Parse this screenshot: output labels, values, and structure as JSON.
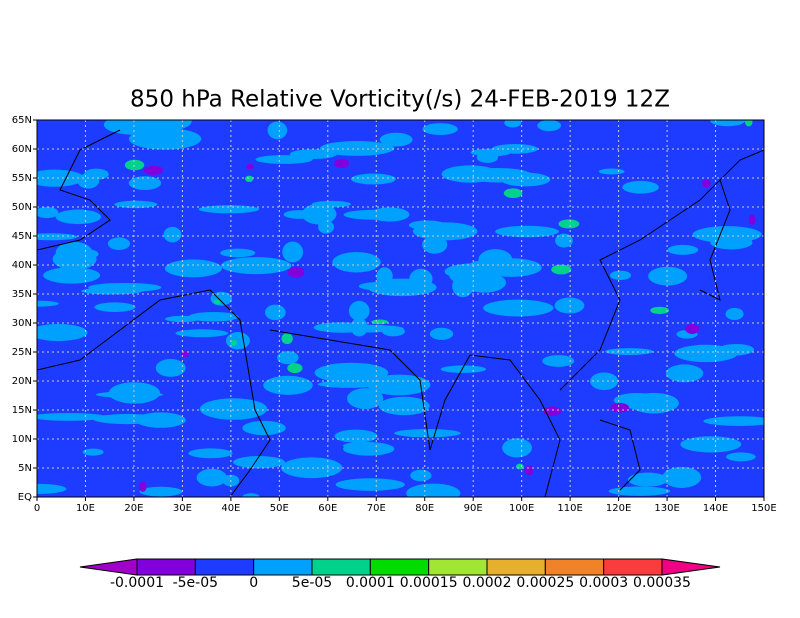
{
  "title": "850 hPa Relative Vorticity(/s) 24-FEB-2019 12Z",
  "map": {
    "lon_ticks": [
      "0",
      "10E",
      "20E",
      "30E",
      "40E",
      "50E",
      "60E",
      "70E",
      "80E",
      "90E",
      "100E",
      "110E",
      "120E",
      "130E",
      "140E",
      "150E"
    ],
    "lat_ticks": [
      "EQ",
      "5N",
      "10N",
      "15N",
      "20N",
      "25N",
      "30N",
      "35N",
      "40N",
      "45N",
      "50N",
      "55N",
      "60N",
      "65N"
    ]
  },
  "colorbar": {
    "colors": [
      "#a000c8",
      "#8200dc",
      "#1e3cff",
      "#00a0ff",
      "#00d28c",
      "#00dc00",
      "#a0e632",
      "#e6af2d",
      "#f08228",
      "#fa3c3c",
      "#f00082"
    ],
    "labels": [
      "-0.0001",
      "-5e-05",
      "0",
      "5e-05",
      "0.0001",
      "0.00015",
      "0.0002",
      "0.00025",
      "0.0003",
      "0.00035"
    ]
  }
}
